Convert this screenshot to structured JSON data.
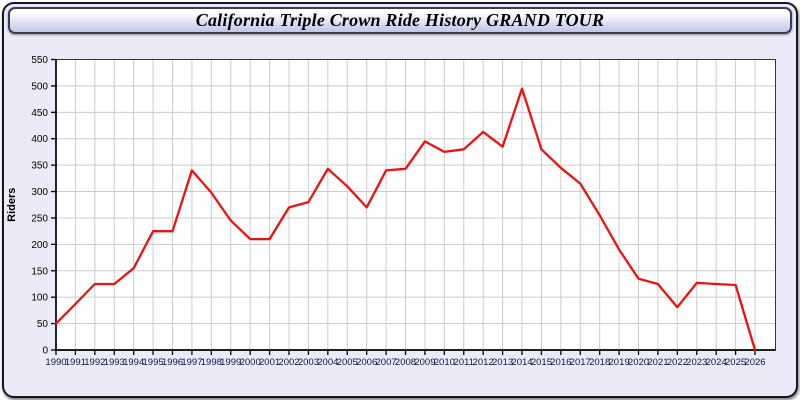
{
  "title": "California Triple Crown Ride History GRAND TOUR",
  "colors": {
    "series_line": "#ee1111",
    "panel_background": "#eaeaf8",
    "plot_background": "#ffffff",
    "gridline": "#cccccc",
    "axis": "#000000",
    "frame": "#2f2f5e",
    "x_tick_label": "#14144a",
    "y_tick_label": "#000000"
  },
  "chart_data": {
    "type": "line",
    "title": "California Triple Crown Ride History GRAND TOUR",
    "xlabel": "",
    "ylabel": "Riders",
    "legend_position": "none",
    "grid": true,
    "ylim": [
      0,
      550
    ],
    "ytick_step": 50,
    "x": [
      1990,
      1991,
      1992,
      1993,
      1994,
      1995,
      1996,
      1997,
      1998,
      1999,
      2000,
      2001,
      2002,
      2003,
      2004,
      2005,
      2006,
      2007,
      2008,
      2009,
      2010,
      2011,
      2012,
      2013,
      2014,
      2015,
      2016,
      2017,
      2018,
      2019,
      2020,
      2021,
      2022,
      2023,
      2024,
      2025,
      2026
    ],
    "series": [
      {
        "name": "Riders",
        "values": [
          50,
          87,
          125,
          125,
          155,
          225,
          225,
          340,
          298,
          245,
          210,
          210,
          270,
          280,
          343,
          310,
          270,
          340,
          343,
          395,
          375,
          380,
          413,
          385,
          495,
          380,
          345,
          315,
          255,
          190,
          135,
          125,
          81,
          127,
          125,
          123,
          0
        ]
      }
    ]
  }
}
